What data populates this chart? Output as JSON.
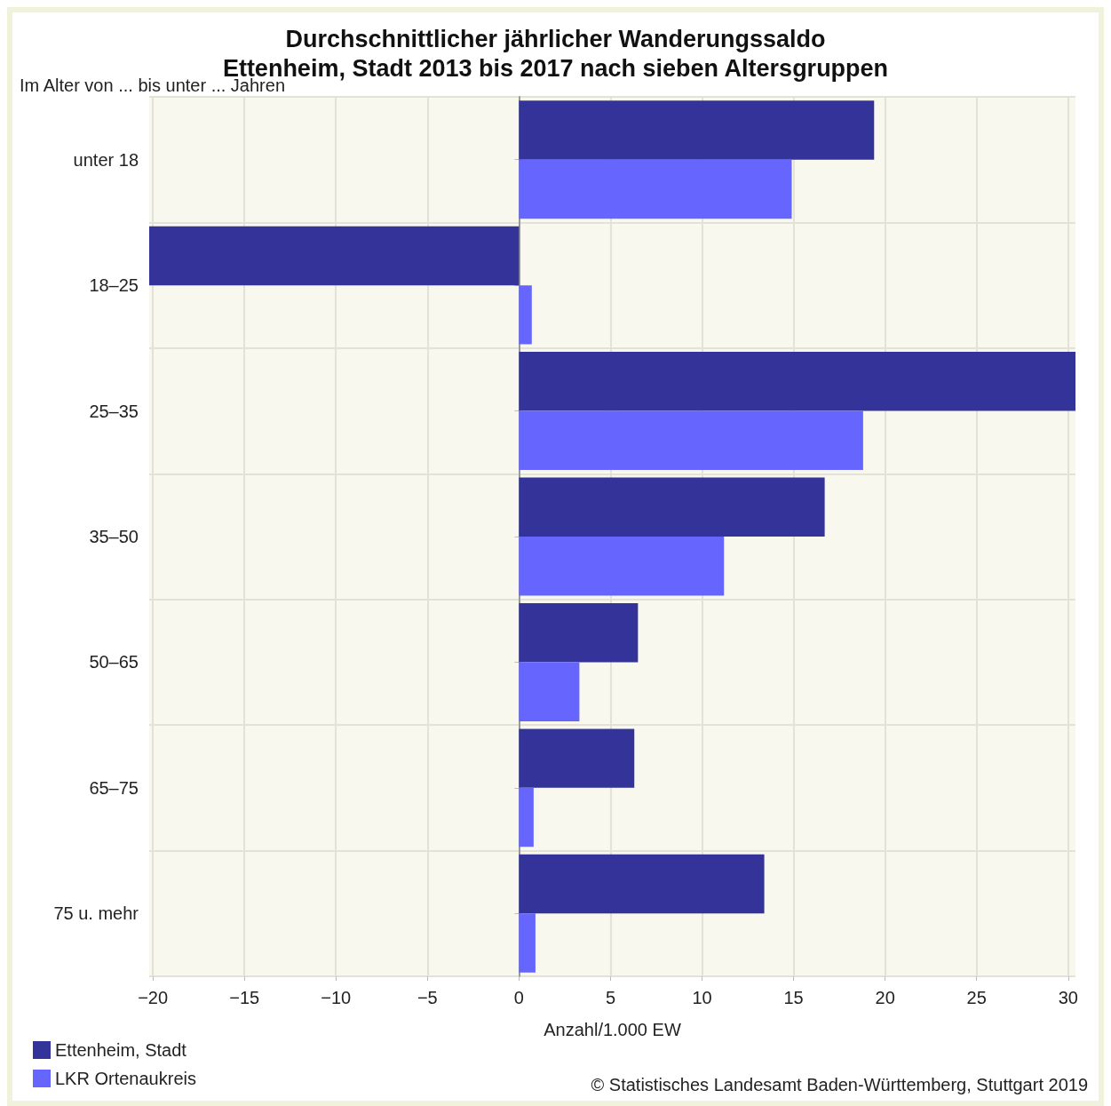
{
  "chart_data": {
    "type": "bar",
    "orientation": "horizontal",
    "title": "Durchschnittlicher jährlicher Wanderungssaldo\nEttenheim, Stadt 2013 bis 2017 nach sieben Altersgruppen",
    "ylabel": "Im Alter von ... bis unter ... Jahren",
    "xlabel": "Anzahl/1.000 EW",
    "categories": [
      "unter 18",
      "18–25",
      "25–35",
      "35–50",
      "50–65",
      "65–75",
      "75 u. mehr"
    ],
    "series": [
      {
        "name": "Ettenheim, Stadt",
        "color": "#333399",
        "values": [
          19.4,
          -20.2,
          30.4,
          16.7,
          6.5,
          6.3,
          13.4
        ]
      },
      {
        "name": "LKR Ortenaukreis",
        "color": "#6666ff",
        "values": [
          14.9,
          0.7,
          18.8,
          11.2,
          3.3,
          0.8,
          0.9
        ]
      }
    ],
    "xlim": [
      -20.2,
      30.4
    ],
    "xticks": [
      -20,
      -15,
      -10,
      -5,
      0,
      5,
      10,
      15,
      20,
      25,
      30
    ],
    "grid": true,
    "legend": "bottom left",
    "annotations": [
      "© Statistisches Landesamt Baden-Württemberg, Stuttgart 2019"
    ]
  }
}
